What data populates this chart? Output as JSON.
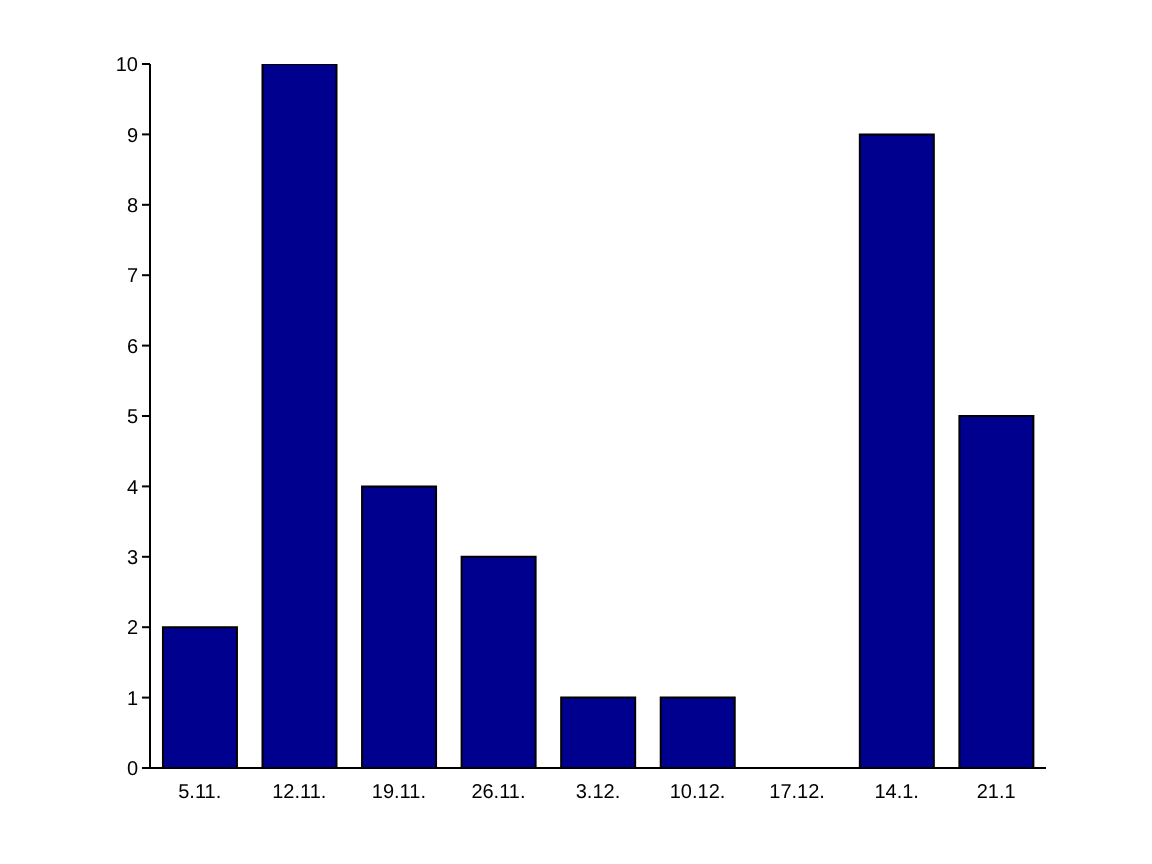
{
  "chart_data": {
    "type": "bar",
    "categories": [
      "5.11.",
      "12.11.",
      "19.11.",
      "26.11.",
      "3.12.",
      "10.12.",
      "17.12.",
      "14.1.",
      "21.1"
    ],
    "values": [
      2,
      10,
      4,
      3,
      1,
      1,
      0,
      9,
      5
    ],
    "color": "#00008f",
    "ylim": [
      0,
      10
    ],
    "yticks": [
      0,
      1,
      2,
      3,
      4,
      5,
      6,
      7,
      8,
      9,
      10
    ],
    "grid": false
  }
}
